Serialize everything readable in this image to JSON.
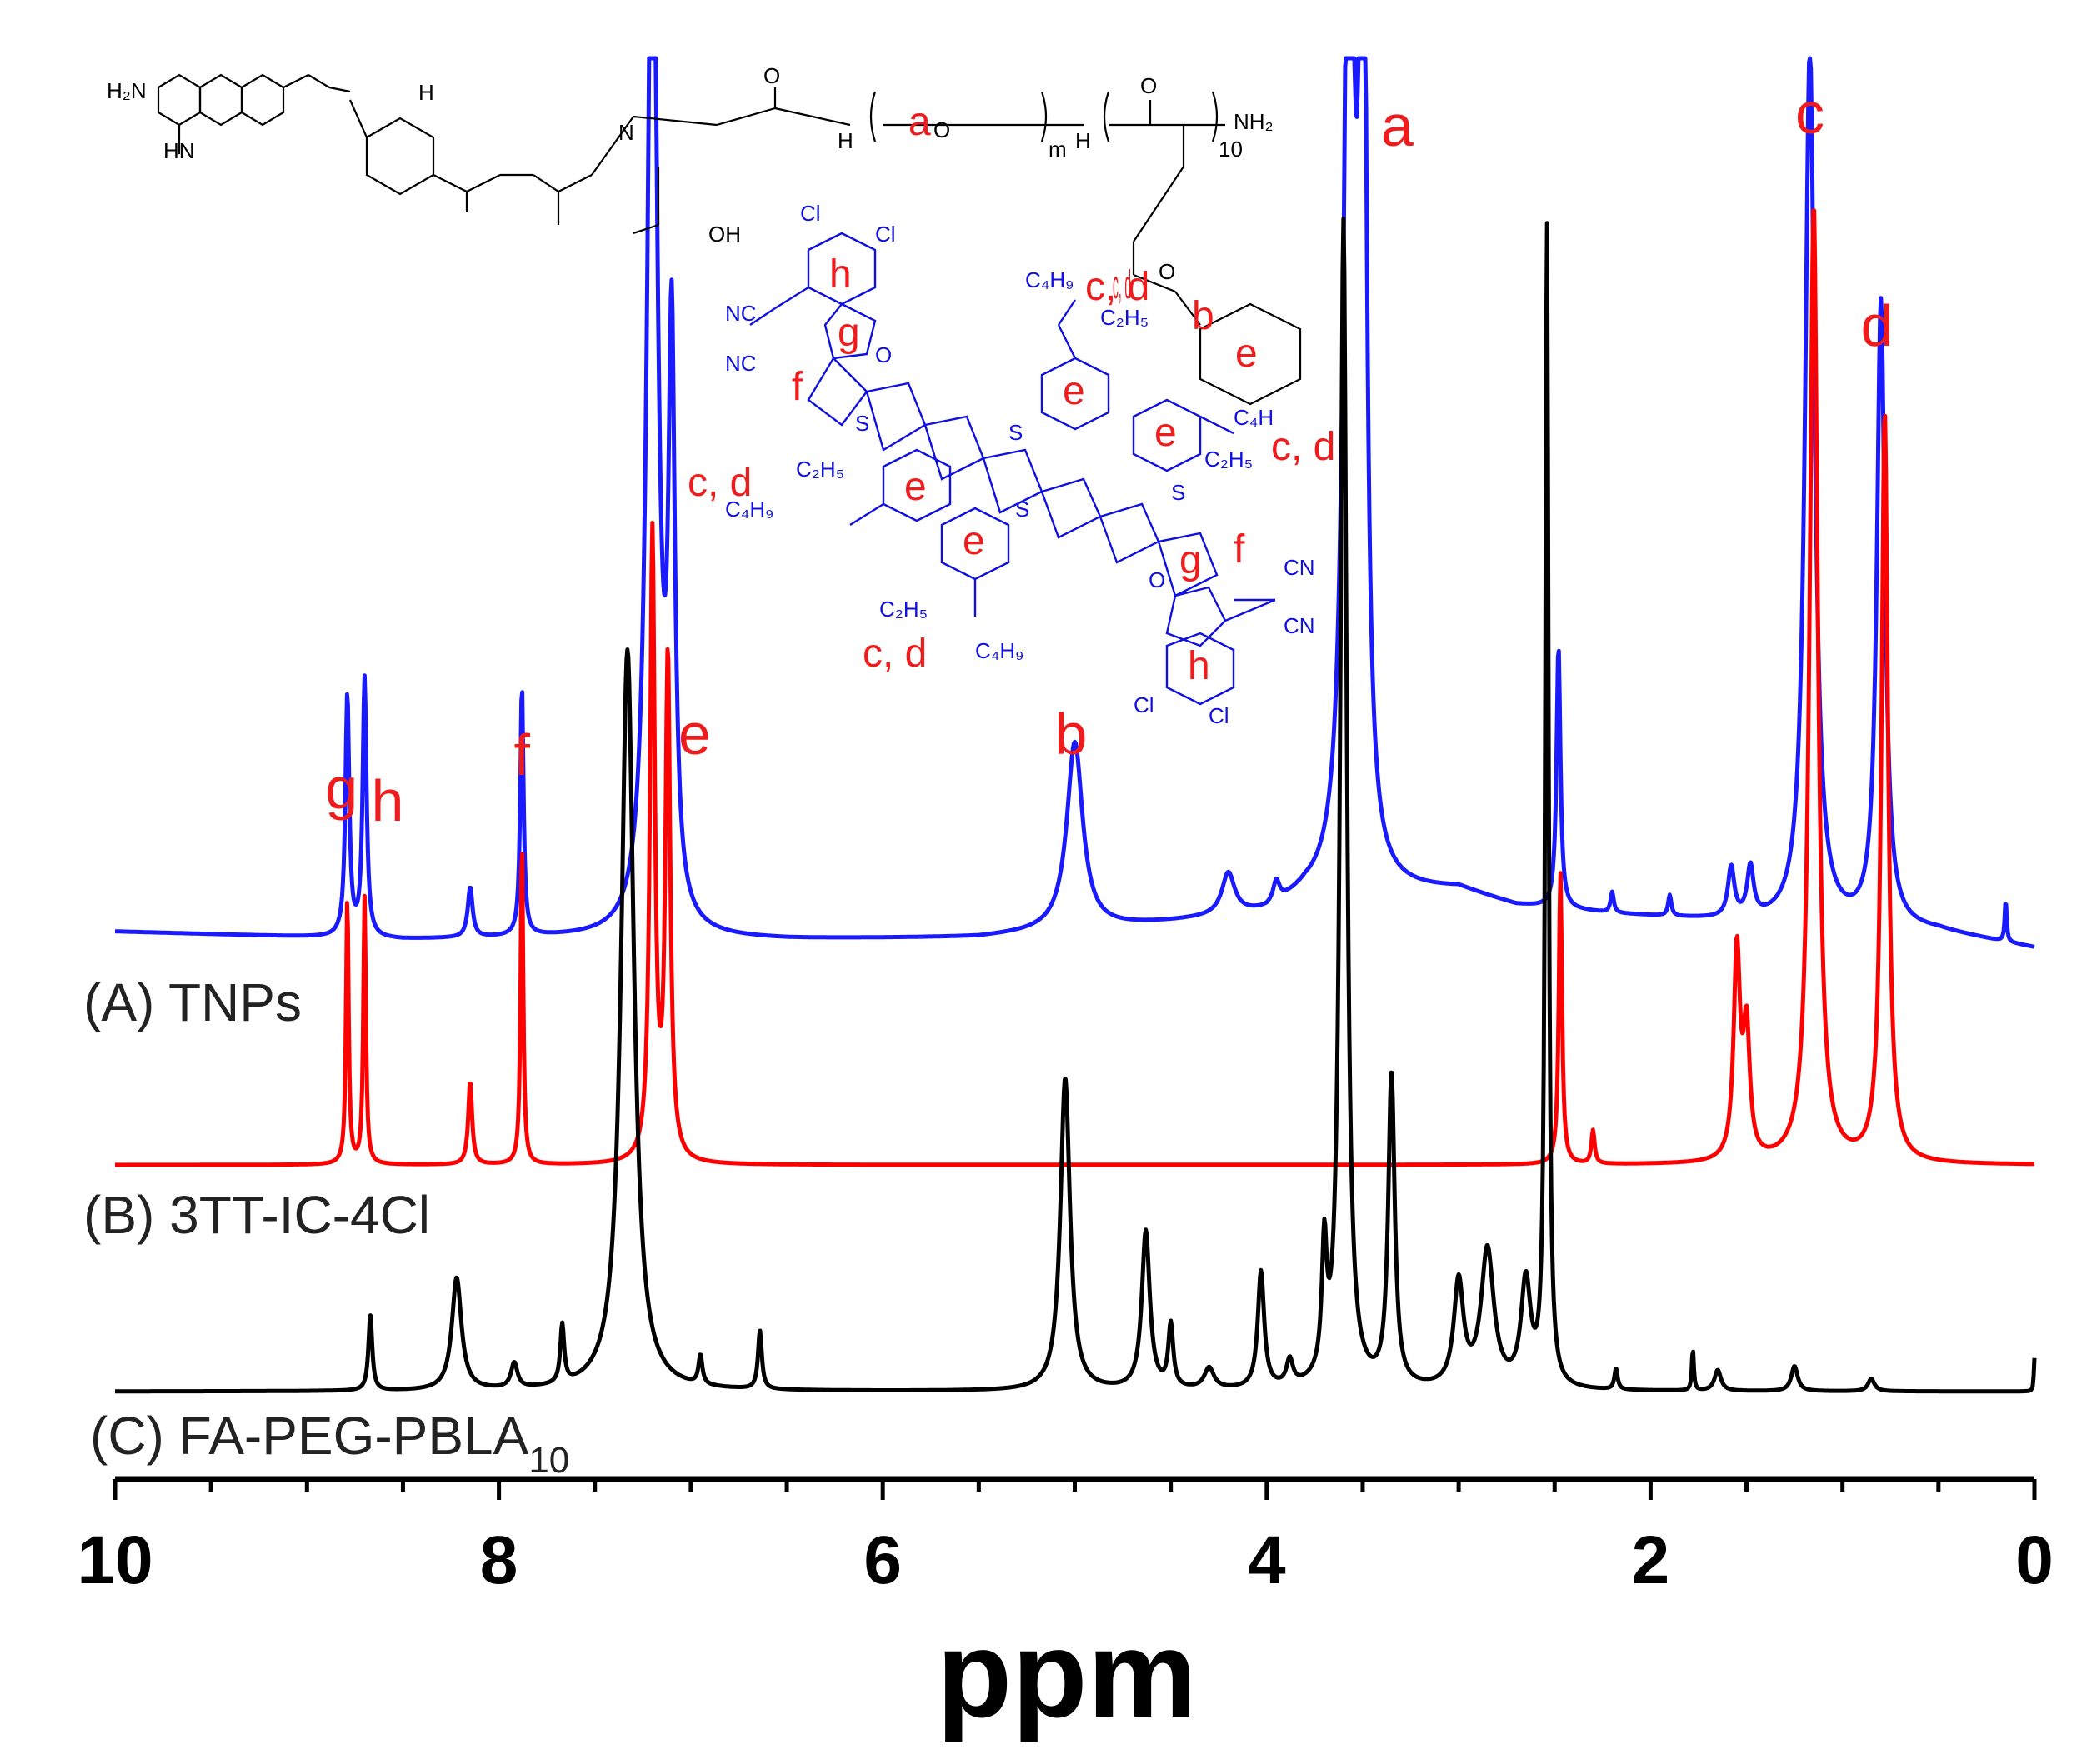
{
  "chart_data": {
    "type": "line",
    "title": "",
    "xlabel": "ppm",
    "ylabel": "",
    "xlim": [
      10,
      0
    ],
    "x_reversed": true,
    "x_ticks": [
      "10",
      "8",
      "6",
      "4",
      "2",
      "0"
    ],
    "grid": false,
    "series": [
      {
        "name": "(A) TNPs",
        "label_main": "(A) TNPs",
        "color": "#1a1aff",
        "baseline": [
          [
            10,
            0.02
          ],
          [
            8.5,
            0.0
          ],
          [
            7.8,
            0.005
          ],
          [
            6.5,
            0.0
          ],
          [
            5.5,
            0.005
          ],
          [
            4.5,
            0.04
          ],
          [
            4.0,
            0.06
          ],
          [
            3.8,
            0.1
          ],
          [
            3.0,
            0.12
          ],
          [
            2.7,
            0.08
          ],
          [
            2.2,
            0.06
          ],
          [
            1.5,
            0.04
          ],
          [
            1.0,
            0.03
          ],
          [
            0.5,
            0.02
          ],
          [
            0.0,
            -0.02
          ]
        ],
        "peaks": [
          {
            "ppm": 8.79,
            "height": 0.58,
            "width": 0.012
          },
          {
            "ppm": 8.7,
            "height": 0.62,
            "width": 0.012
          },
          {
            "ppm": 8.15,
            "height": 0.12,
            "width": 0.015
          },
          {
            "ppm": 7.88,
            "height": 0.6,
            "width": 0.01
          },
          {
            "ppm": 7.2,
            "height": 2.8,
            "width": 0.03
          },
          {
            "ppm": 7.1,
            "height": 1.35,
            "width": 0.02
          },
          {
            "ppm": 5.0,
            "height": 0.45,
            "width": 0.05
          },
          {
            "ppm": 4.2,
            "height": 0.1,
            "width": 0.04
          },
          {
            "ppm": 3.95,
            "height": 0.05,
            "width": 0.02
          },
          {
            "ppm": 3.57,
            "height": 2.8,
            "width": 0.03
          },
          {
            "ppm": 3.5,
            "height": 2.8,
            "width": 0.02
          },
          {
            "ppm": 2.48,
            "height": 0.63,
            "width": 0.012
          },
          {
            "ppm": 2.2,
            "height": 0.05,
            "width": 0.01
          },
          {
            "ppm": 1.9,
            "height": 0.05,
            "width": 0.01
          },
          {
            "ppm": 1.58,
            "height": 0.12,
            "width": 0.02
          },
          {
            "ppm": 1.48,
            "height": 0.12,
            "width": 0.02
          },
          {
            "ppm": 1.17,
            "height": 2.1,
            "width": 0.03
          },
          {
            "ppm": 0.8,
            "height": 1.5,
            "width": 0.025
          },
          {
            "ppm": 0.15,
            "height": 0.1,
            "width": 0.006
          }
        ]
      },
      {
        "name": "(B) 3TT-IC-4Cl",
        "label_main": "(B) 3TT-IC-4Cl",
        "color": "#ff0000",
        "baseline": [
          [
            10,
            0.0
          ],
          [
            0.0,
            0.0
          ]
        ],
        "peaks": [
          {
            "ppm": 8.79,
            "height": 0.64,
            "width": 0.008
          },
          {
            "ppm": 8.7,
            "height": 0.64,
            "width": 0.008
          },
          {
            "ppm": 8.15,
            "height": 0.2,
            "width": 0.012
          },
          {
            "ppm": 7.88,
            "height": 0.78,
            "width": 0.008
          },
          {
            "ppm": 7.2,
            "height": 1.5,
            "width": 0.015
          },
          {
            "ppm": 7.12,
            "height": 1.2,
            "width": 0.015
          },
          {
            "ppm": 2.47,
            "height": 0.7,
            "width": 0.01
          },
          {
            "ppm": 2.3,
            "height": 0.08,
            "width": 0.01
          },
          {
            "ppm": 1.55,
            "height": 0.5,
            "width": 0.02
          },
          {
            "ppm": 1.5,
            "height": 0.3,
            "width": 0.02
          },
          {
            "ppm": 1.15,
            "height": 2.3,
            "width": 0.025
          },
          {
            "ppm": 0.78,
            "height": 1.8,
            "width": 0.02
          }
        ]
      },
      {
        "name": "(C) FA-PEG-PBLA10",
        "label_main": "(C) FA-PEG-PBLA",
        "label_sub": "10",
        "color": "#000000",
        "baseline": [
          [
            10,
            0.0
          ],
          [
            0.0,
            0.0
          ]
        ],
        "peaks": [
          {
            "ppm": 8.67,
            "height": 0.18,
            "width": 0.012
          },
          {
            "ppm": 8.22,
            "height": 0.27,
            "width": 0.03
          },
          {
            "ppm": 7.92,
            "height": 0.06,
            "width": 0.02
          },
          {
            "ppm": 7.67,
            "height": 0.14,
            "width": 0.012
          },
          {
            "ppm": 7.33,
            "height": 1.78,
            "width": 0.04
          },
          {
            "ppm": 6.95,
            "height": 0.07,
            "width": 0.012
          },
          {
            "ppm": 6.64,
            "height": 0.14,
            "width": 0.012
          },
          {
            "ppm": 5.05,
            "height": 0.75,
            "width": 0.03
          },
          {
            "ppm": 4.63,
            "height": 0.38,
            "width": 0.025
          },
          {
            "ppm": 4.5,
            "height": 0.15,
            "width": 0.015
          },
          {
            "ppm": 4.3,
            "height": 0.05,
            "width": 0.03
          },
          {
            "ppm": 4.03,
            "height": 0.28,
            "width": 0.02
          },
          {
            "ppm": 3.88,
            "height": 0.06,
            "width": 0.02
          },
          {
            "ppm": 3.7,
            "height": 0.3,
            "width": 0.015
          },
          {
            "ppm": 3.6,
            "height": 2.8,
            "width": 0.02
          },
          {
            "ppm": 3.35,
            "height": 0.75,
            "width": 0.02
          },
          {
            "ppm": 3.0,
            "height": 0.25,
            "width": 0.03
          },
          {
            "ppm": 2.85,
            "height": 0.33,
            "width": 0.04
          },
          {
            "ppm": 2.65,
            "height": 0.25,
            "width": 0.03
          },
          {
            "ppm": 2.54,
            "height": 2.8,
            "width": 0.01
          },
          {
            "ppm": 2.18,
            "height": 0.05,
            "width": 0.01
          },
          {
            "ppm": 1.78,
            "height": 0.1,
            "width": 0.006
          },
          {
            "ppm": 1.65,
            "height": 0.05,
            "width": 0.02
          },
          {
            "ppm": 1.25,
            "height": 0.06,
            "width": 0.02
          },
          {
            "ppm": 0.85,
            "height": 0.03,
            "width": 0.02
          },
          {
            "ppm": 0.0,
            "height": 0.08,
            "width": 0.004
          }
        ]
      }
    ],
    "peak_assignments": [
      {
        "label": "g",
        "ppm": 8.82
      },
      {
        "label": "h",
        "ppm": 8.58
      },
      {
        "label": "f",
        "ppm": 7.88
      },
      {
        "label": "e",
        "ppm": 6.98
      },
      {
        "label": "b",
        "ppm": 5.02
      },
      {
        "label": "a",
        "ppm": 3.32
      },
      {
        "label": "c",
        "ppm": 1.17
      },
      {
        "label": "d",
        "ppm": 0.82
      }
    ]
  },
  "structures": {
    "polymer_labels": {
      "h2n": "H₂N",
      "hn": "HN",
      "nh": "H",
      "n1": "N",
      "o": "O",
      "oh": "OH",
      "m": "m",
      "ten": "10",
      "nh2": "NH₂"
    },
    "acceptor_labels": {
      "cl": "Cl",
      "nc": "NC",
      "cn": "CN",
      "s": "S",
      "o": "O",
      "c4h9": "C₄H₉",
      "c2h5": "C₂H₅",
      "c4h": "C₄H"
    },
    "proton_tags": {
      "a": "a",
      "b": "b",
      "cd": "c, d",
      "e": "e",
      "f": "f",
      "g": "g",
      "h": "h"
    }
  }
}
